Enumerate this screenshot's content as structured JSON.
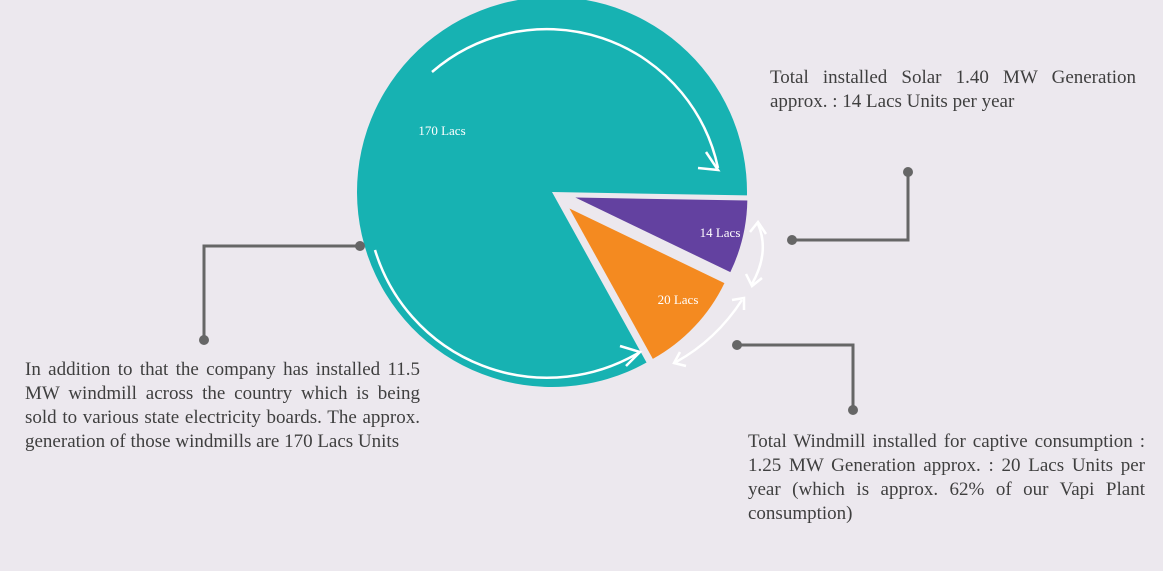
{
  "chart_data": {
    "type": "pie",
    "values": [
      170,
      14,
      20
    ],
    "value_labels": [
      "170 Lacs",
      "14 Lacs",
      "20 Lacs"
    ],
    "colors": [
      "#17b2b2",
      "#6341a0",
      "#f48a20"
    ],
    "annotations": [
      "In addition to that the company has installed 11.5 MW windmill across the country which is being sold to various state electricity boards. The approx. generation of those windmills are 170 Lacs Units",
      "Total installed Solar 1.40 MW Generation approx. : 14 Lacs Units per year",
      "Total Windmill installed for captive consumption : 1.25 MW Generation approx. : 20 Lacs Units per year (which is approx. 62% of our Vapi Plant consumption)"
    ]
  }
}
